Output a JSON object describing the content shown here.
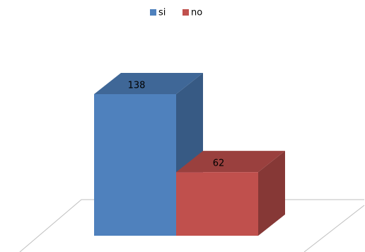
{
  "chart_data": {
    "type": "bar",
    "legend": "top",
    "series": [
      {
        "name": "si",
        "color": "#4f81bd",
        "values": [
          138
        ]
      },
      {
        "name": "no",
        "color": "#c0504d",
        "values": [
          62
        ]
      }
    ]
  }
}
